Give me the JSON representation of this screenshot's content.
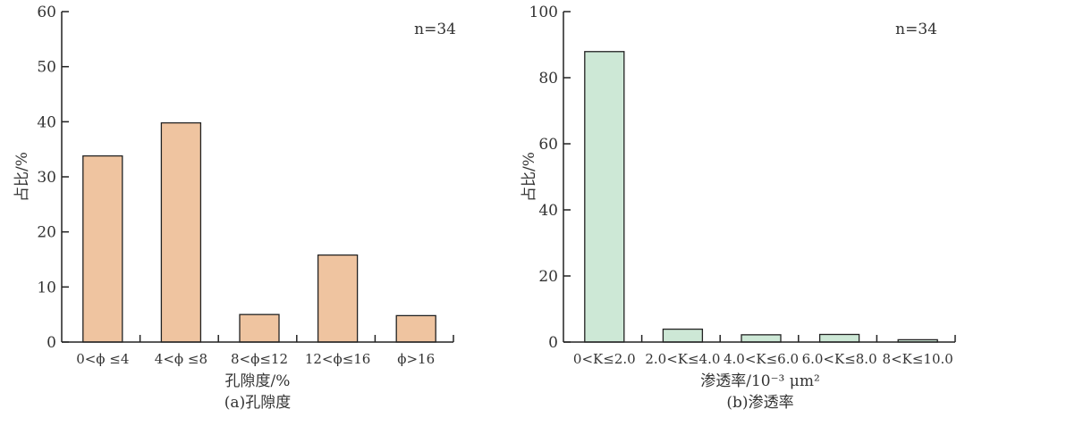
{
  "chart_data": [
    {
      "type": "bar",
      "panel_label": "(a)孔隙度",
      "xlabel": "孔隙度/%",
      "ylabel": "占比/%",
      "annotation": "n=34",
      "categories": [
        "0<ϕ ≤4",
        "4<ϕ ≤8",
        "8<ϕ≤12",
        "12<ϕ≤16",
        "ϕ>16"
      ],
      "values": [
        33.8,
        39.8,
        5.0,
        15.8,
        4.8
      ],
      "ylim": [
        0,
        60
      ],
      "yticks": [
        0,
        10,
        20,
        30,
        40,
        50,
        60
      ],
      "grid": false,
      "bar_color": "#efc4a0"
    },
    {
      "type": "bar",
      "panel_label": "(b)渗透率",
      "xlabel": "渗透率/10⁻³ μm²",
      "ylabel": "占比/%",
      "annotation": "n=34",
      "categories": [
        "0<K≤2.0",
        "2.0<K≤4.0",
        "4.0<K≤6.0",
        "6.0<K≤8.0",
        "8<K≤10.0"
      ],
      "values": [
        87.9,
        3.9,
        2.2,
        2.3,
        0.7
      ],
      "ylim": [
        0,
        100
      ],
      "yticks": [
        0,
        20,
        40,
        60,
        80,
        100
      ],
      "grid": false,
      "bar_color": "#cde8d6"
    }
  ]
}
